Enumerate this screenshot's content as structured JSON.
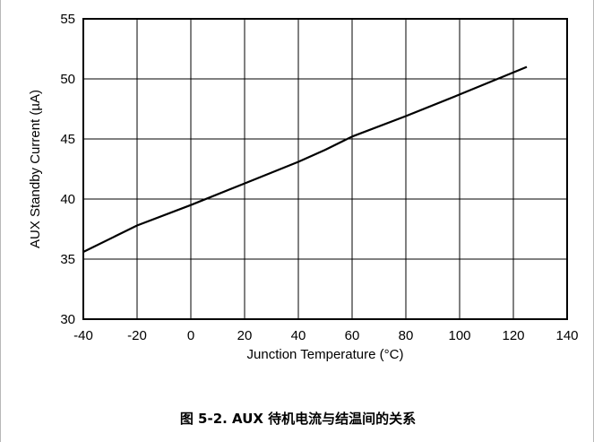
{
  "caption": "图 5-2. AUX 待机电流与结温间的关系",
  "chart_data": {
    "type": "line",
    "title": "",
    "xlabel": "Junction Temperature (°C)",
    "ylabel": "AUX Standby Current (µA)",
    "xlim": [
      -40,
      140
    ],
    "ylim": [
      30,
      55
    ],
    "xticks": [
      -40,
      -20,
      0,
      20,
      40,
      60,
      80,
      100,
      120,
      140
    ],
    "yticks": [
      30,
      35,
      40,
      45,
      50,
      55
    ],
    "grid": true,
    "legend": "none",
    "series": [
      {
        "x": [
          -40,
          -20,
          0,
          20,
          40,
          50,
          60,
          80,
          100,
          125
        ],
        "y": [
          35.6,
          37.8,
          39.5,
          41.3,
          43.1,
          44.1,
          45.2,
          46.9,
          48.7,
          51.0
        ],
        "color": "#000000"
      }
    ]
  }
}
